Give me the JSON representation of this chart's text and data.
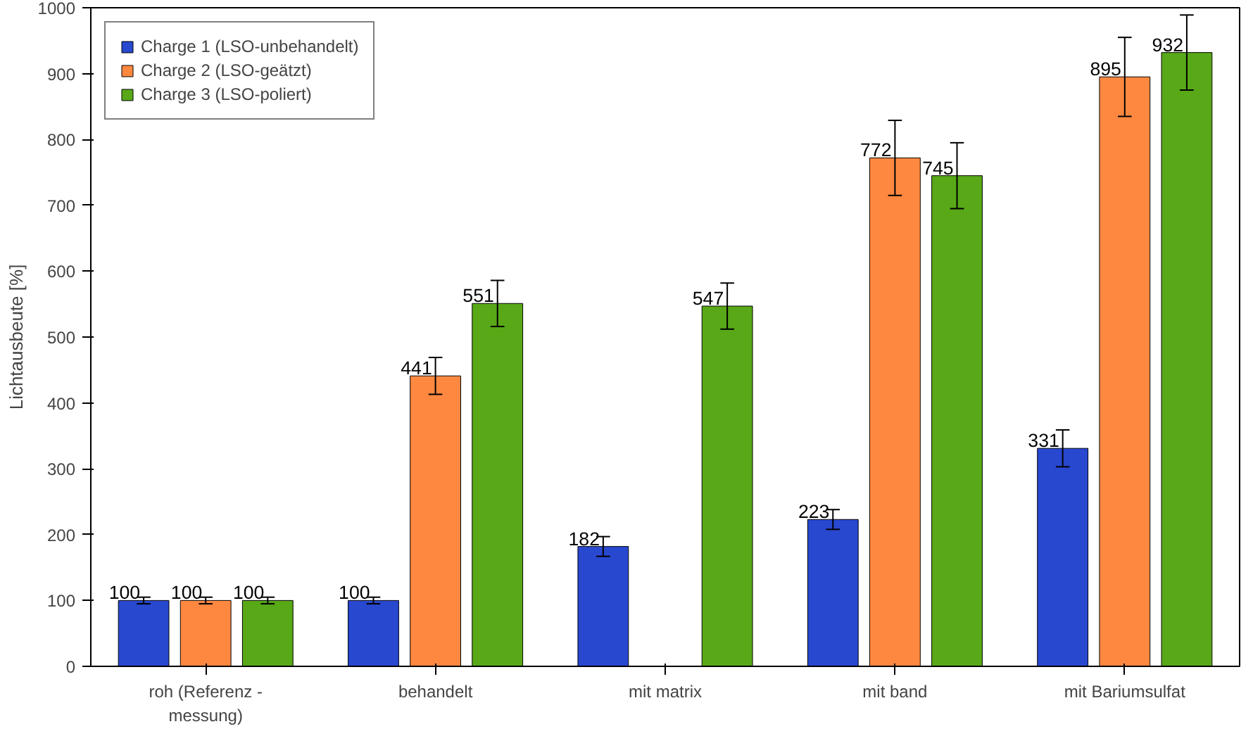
{
  "chart_data": {
    "type": "bar",
    "ylabel": "Lichtausbeute [%]",
    "categories": [
      "roh (Referenz -\nmessung)",
      "behandelt",
      "mit matrix",
      "mit band",
      "mit Bariumsulfat"
    ],
    "series": [
      {
        "name": "Charge 1 (LSO-unbehandelt)",
        "color": "#2848d0",
        "values": [
          100,
          100,
          182,
          223,
          331
        ],
        "errors": [
          5,
          5,
          15,
          15,
          28
        ]
      },
      {
        "name": "Charge 2 (LSO-geätzt)",
        "color": "#ff8840",
        "values": [
          100,
          441,
          null,
          772,
          895
        ],
        "errors": [
          5,
          28,
          null,
          57,
          60
        ]
      },
      {
        "name": "Charge 3 (LSO-poliert)",
        "color": "#58a818",
        "values": [
          100,
          551,
          547,
          745,
          932
        ],
        "errors": [
          5,
          35,
          35,
          50,
          57
        ]
      }
    ],
    "ylim": [
      0,
      1000
    ],
    "yticks": [
      0,
      100,
      200,
      300,
      400,
      500,
      600,
      700,
      800,
      900,
      1000
    ],
    "data_labels": true,
    "legend": "top left",
    "grid": false
  }
}
